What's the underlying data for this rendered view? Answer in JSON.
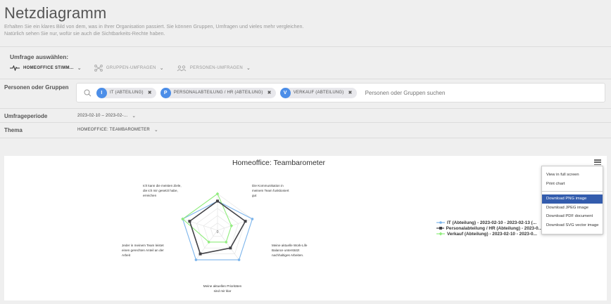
{
  "header": {
    "title": "Netzdiagramm",
    "description": "Erhalten Sie ein klares Bild von dem, was in Ihrer Organisation passiert. Sie können Gruppen, Umfragen und vieles mehr vergleichen. Natürlich sehen Sie nur, wofür sie auch die Sichtbarkeits-Rechte haben."
  },
  "survey": {
    "label": "Umfrage auswählen:",
    "tabs": [
      {
        "label": "HOMEOFFICE STIMM...",
        "icon": "pulse-icon"
      },
      {
        "label": "GRUPPEN-UMFRAGEN",
        "icon": "network-icon"
      },
      {
        "label": "PERSONEN-UMFRAGEN",
        "icon": "people-icon"
      }
    ]
  },
  "people": {
    "label": "Personen oder Gruppen",
    "chips": [
      {
        "badge": "I",
        "label": "IT (ABTEILUNG)"
      },
      {
        "badge": "P",
        "label": "PERSONALABTEILUNG / HR (ABTEILUNG)"
      },
      {
        "badge": "V",
        "label": "VERKAUF (ABTEILUNG)"
      }
    ],
    "placeholder": "Personen oder Gruppen suchen"
  },
  "period": {
    "label": "Umfrageperiode",
    "value": "2023-02-10 – 2023-02-..."
  },
  "topic": {
    "label": "Thema",
    "value": "HOMEOFFICE: TEAMBAROMETER"
  },
  "menu": {
    "items": [
      "View in full screen",
      "Print chart",
      "Download PNG image",
      "Download JPEG image",
      "Download PDF document",
      "Download SVG vector image"
    ],
    "highlighted": "Download PNG image"
  },
  "colors": {
    "it": "#7cb5ec",
    "hr": "#434348",
    "sales": "#90ed7d",
    "badge": "#4c8ee8",
    "menu_highlight": "#335cad"
  },
  "chart_data": {
    "type": "radar",
    "title": "Homeoffice: Teambarometer",
    "center_label": "0",
    "axes": [
      [
        "Die Kommunikation in",
        "meinem Team funktioniert",
        "gut"
      ],
      [
        "Meine aktuelle Work-Life",
        "Balance unterstützt",
        "nachhaltiges Arbeiten."
      ],
      [
        "Meine aktuellen Prioritäten",
        "sind mir klar"
      ],
      [
        "Jeder in meinem Team leistet",
        "einen gerechten Anteil an der",
        "Arbeit"
      ],
      [
        "Ich kann die meisten Ziele,",
        "die ich mir gesetzt habe,",
        "erreichen"
      ]
    ],
    "series": [
      {
        "name": "IT (Abteilung) - 2023-02-10 - 2023-02-13 (...",
        "values": [
          80,
          100,
          100,
          100,
          100
        ]
      },
      {
        "name": "Personalabteilung / HR (Abteilung) - 2023-0...",
        "values": [
          80,
          80,
          60,
          80,
          80
        ]
      },
      {
        "name": "Verkauf (Abteilung) - 2023-02-10 - 2023-0...",
        "values": [
          100,
          40,
          40,
          40,
          100
        ]
      }
    ],
    "ylim": [
      0,
      100
    ]
  }
}
